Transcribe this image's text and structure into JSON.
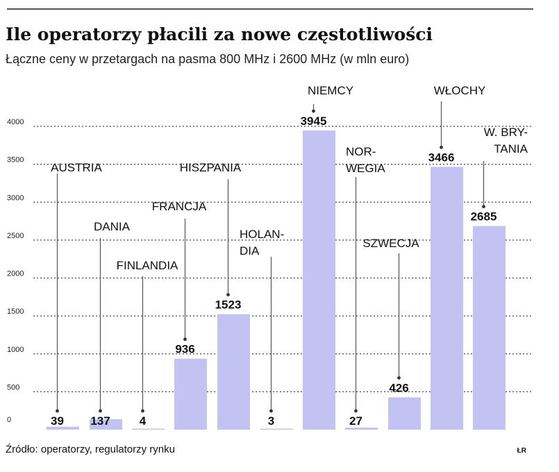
{
  "colors": {
    "bar": "#c3c3f3",
    "grid": "#444444",
    "text": "#111111",
    "leader": "#555555"
  },
  "chart_data": {
    "type": "bar",
    "title": "Ile operatorzy płacili za nowe częstotliwości",
    "subtitle": "Łączne ceny w przetargach na pasma 800 MHz i 2600 MHz (w mln euro)",
    "xlabel": "",
    "ylabel": "",
    "ylim": [
      0,
      4000
    ],
    "yticks": [
      "0",
      "500",
      "1000",
      "1500",
      "2000",
      "2500",
      "3000",
      "3500",
      "4000"
    ],
    "grid": true,
    "categories": [
      [
        "AUSTRIA"
      ],
      [
        "DANIA"
      ],
      [
        "FINLANDIA"
      ],
      [
        "FRANCJA"
      ],
      [
        "HISZPANIA"
      ],
      [
        "HOLAN-",
        "DIA"
      ],
      [
        "NIEMCY"
      ],
      [
        "NOR-",
        "WEGIA"
      ],
      [
        "SZWECJA"
      ],
      [
        "WŁOCHY"
      ],
      [
        "W. BRY-",
        "TANIA"
      ]
    ],
    "values": [
      39,
      137,
      4,
      936,
      1523,
      3,
      3945,
      27,
      426,
      3466,
      2685
    ],
    "value_labels": [
      "39",
      "137",
      "4",
      "936",
      "1523",
      "3",
      "3945",
      "27",
      "426",
      "3466",
      "2685"
    ]
  },
  "footer": {
    "source": "Źródło: operatorzy, regulatorzy rynku",
    "credit": "ŁR"
  }
}
